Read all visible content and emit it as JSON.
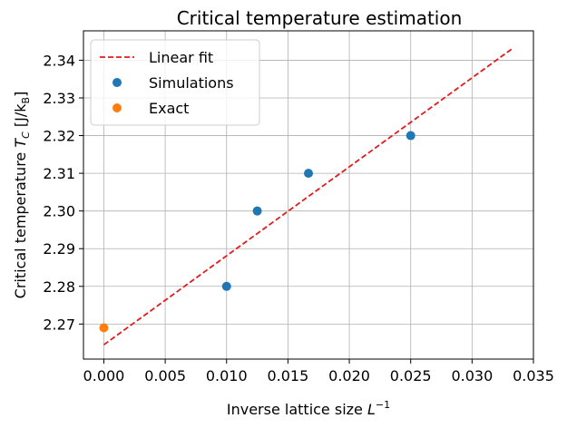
{
  "chart_data": {
    "type": "scatter",
    "title": "Critical temperature estimation",
    "xlabel": "Inverse lattice size",
    "xlabel_math_base": "L",
    "xlabel_math_sup": "−1",
    "ylabel": "Critical temperature",
    "ylabel_math_base": "T",
    "ylabel_math_sub": "C",
    "ylabel_unit_prefix": "[J/k",
    "ylabel_unit_sub": "B",
    "ylabel_unit_suffix": "]",
    "xlim": [
      -0.00166,
      0.035
    ],
    "ylim": [
      2.2607,
      2.3478
    ],
    "xticks": [
      0.0,
      0.005,
      0.01,
      0.015,
      0.02,
      0.025,
      0.03,
      0.035
    ],
    "xtick_labels": [
      "0.000",
      "0.005",
      "0.010",
      "0.015",
      "0.020",
      "0.025",
      "0.030",
      "0.035"
    ],
    "yticks": [
      2.27,
      2.28,
      2.29,
      2.3,
      2.31,
      2.32,
      2.33,
      2.34
    ],
    "ytick_labels": [
      "2.27",
      "2.28",
      "2.29",
      "2.30",
      "2.31",
      "2.32",
      "2.33",
      "2.34"
    ],
    "grid": true,
    "legend_position": "top-left",
    "series": [
      {
        "name": "Linear fit",
        "kind": "line",
        "style": "dashed",
        "color": "#e41a1c",
        "x": [
          0.0,
          0.03333
        ],
        "y": [
          2.2645,
          2.3432
        ]
      },
      {
        "name": "Simulations",
        "kind": "scatter",
        "color": "#1f77b4",
        "x": [
          0.01,
          0.0125,
          0.01667,
          0.025
        ],
        "y": [
          2.28,
          2.3,
          2.31,
          2.32
        ]
      },
      {
        "name": "Exact",
        "kind": "scatter",
        "color": "#ff7f0e",
        "x": [
          0.0
        ],
        "y": [
          2.269
        ]
      }
    ]
  }
}
